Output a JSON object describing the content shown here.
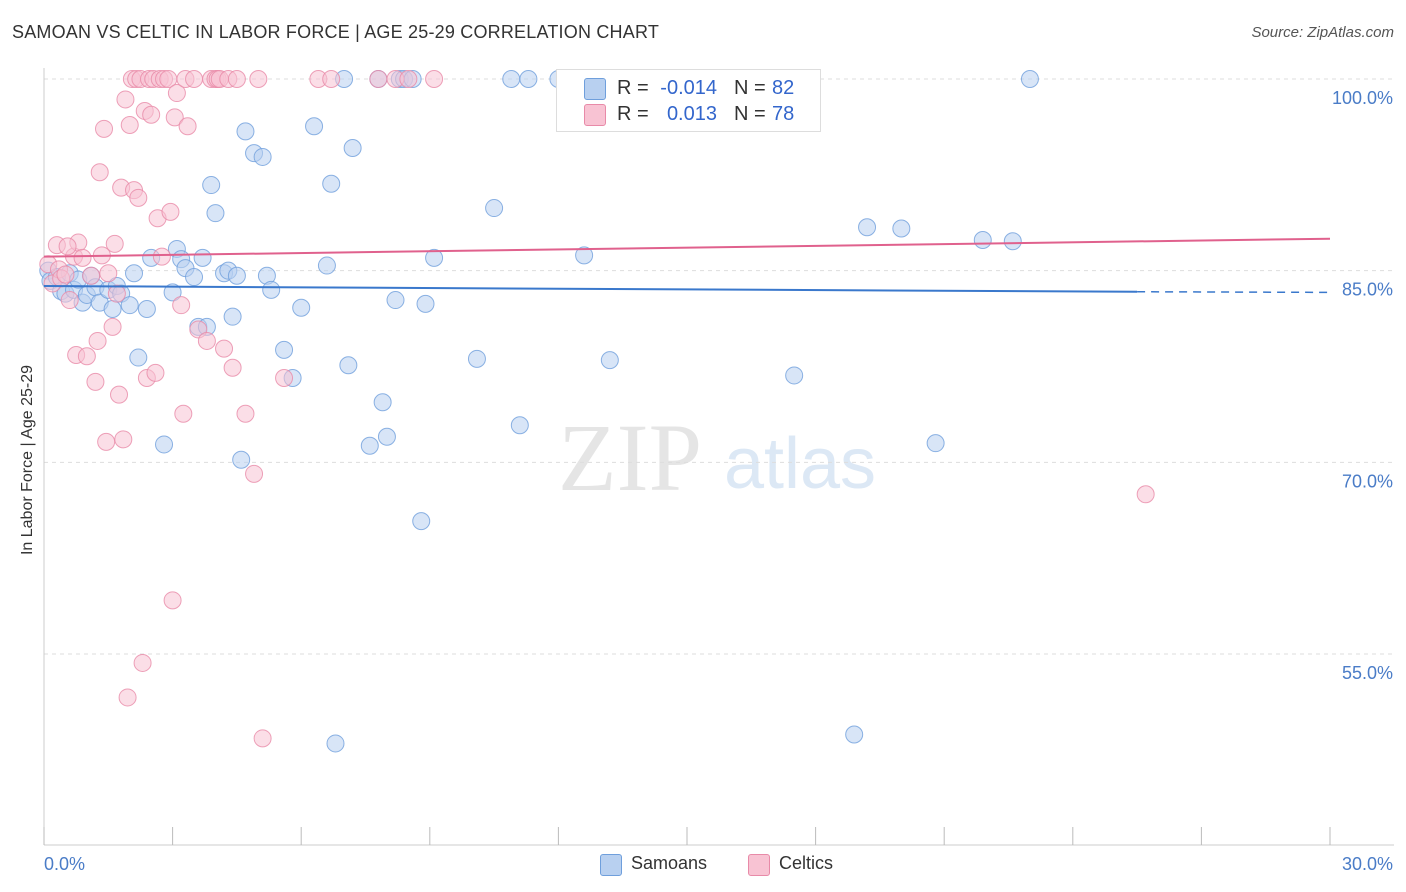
{
  "title": "SAMOAN VS CELTIC IN LABOR FORCE | AGE 25-29 CORRELATION CHART",
  "source": "Source: ZipAtlas.com",
  "watermark": {
    "zip": "ZIP",
    "atlas": "atlas"
  },
  "colors": {
    "samoans_fill": "#b8d0f0",
    "samoans_stroke": "#6f9fdc",
    "samoans_line": "#3a78cc",
    "celtics_fill": "#f8c3d3",
    "celtics_stroke": "#e88aa8",
    "celtics_line": "#e0618d",
    "tick_label": "#4a7cc7",
    "grid": "#dddddd"
  },
  "legend": {
    "rows": [
      {
        "r_label": "R =",
        "r_value": "-0.014",
        "n_label": "N =",
        "n_value": "82"
      },
      {
        "r_label": "R =",
        "r_value": "0.013",
        "n_label": "N =",
        "n_value": "78"
      }
    ]
  },
  "chart_data": {
    "type": "scatter",
    "title": "SAMOAN VS CELTIC IN LABOR FORCE | AGE 25-29 CORRELATION CHART",
    "xlabel": "",
    "ylabel": "In Labor Force | Age 25-29",
    "xlim": [
      0,
      30
    ],
    "ylim": [
      40,
      101.5
    ],
    "x_tick_labels": [
      "0.0%",
      "30.0%"
    ],
    "y_ticks": [
      100,
      85,
      70,
      55
    ],
    "y_tick_labels": [
      "100.0%",
      "85.0%",
      "70.0%",
      "55.0%"
    ],
    "legend_position": "top-center",
    "series": [
      {
        "name": "Samoans",
        "R": -0.014,
        "N": 82,
        "trend": {
          "x0": 0,
          "y0": 83.8,
          "x1": 25.5,
          "y1": 83.35,
          "dashed_to": 30,
          "dashed_y": 83.3
        },
        "points": [
          [
            0.1,
            85
          ],
          [
            0.15,
            84.2
          ],
          [
            0.3,
            84.5
          ],
          [
            0.4,
            83.4
          ],
          [
            0.5,
            83.2
          ],
          [
            0.6,
            84.8
          ],
          [
            0.7,
            83.5
          ],
          [
            0.8,
            84.3
          ],
          [
            0.9,
            82.5
          ],
          [
            1.0,
            83.1
          ],
          [
            1.1,
            84.6
          ],
          [
            1.2,
            83.7
          ],
          [
            1.3,
            82.5
          ],
          [
            1.5,
            83.5
          ],
          [
            1.6,
            82.0
          ],
          [
            1.7,
            83.8
          ],
          [
            1.8,
            83.2
          ],
          [
            2.0,
            82.3
          ],
          [
            2.1,
            84.8
          ],
          [
            2.2,
            78.2
          ],
          [
            2.4,
            82.0
          ],
          [
            2.5,
            86.0
          ],
          [
            2.8,
            71.4
          ],
          [
            3.0,
            83.3
          ],
          [
            3.1,
            86.7
          ],
          [
            3.2,
            85.9
          ],
          [
            3.3,
            85.2
          ],
          [
            3.5,
            84.5
          ],
          [
            3.6,
            80.6
          ],
          [
            3.7,
            86.0
          ],
          [
            3.8,
            80.6
          ],
          [
            3.9,
            91.7
          ],
          [
            4.0,
            89.5
          ],
          [
            4.2,
            84.8
          ],
          [
            4.3,
            85.0
          ],
          [
            4.4,
            81.4
          ],
          [
            4.5,
            84.6
          ],
          [
            4.6,
            70.2
          ],
          [
            4.7,
            95.9
          ],
          [
            4.9,
            94.2
          ],
          [
            5.1,
            93.9
          ],
          [
            5.2,
            84.6
          ],
          [
            5.3,
            83.5
          ],
          [
            5.6,
            78.8
          ],
          [
            5.8,
            76.6
          ],
          [
            6.0,
            82.1
          ],
          [
            6.3,
            96.3
          ],
          [
            6.6,
            85.4
          ],
          [
            6.7,
            91.8
          ],
          [
            6.8,
            48.0
          ],
          [
            7.0,
            100
          ],
          [
            7.1,
            77.6
          ],
          [
            7.2,
            94.6
          ],
          [
            7.6,
            71.3
          ],
          [
            7.8,
            100
          ],
          [
            7.9,
            74.7
          ],
          [
            8.0,
            72.0
          ],
          [
            8.2,
            82.7
          ],
          [
            8.3,
            100
          ],
          [
            8.4,
            100
          ],
          [
            8.6,
            100
          ],
          [
            8.8,
            65.4
          ],
          [
            8.9,
            82.4
          ],
          [
            9.1,
            86.0
          ],
          [
            10.1,
            78.1
          ],
          [
            10.5,
            89.9
          ],
          [
            10.9,
            100
          ],
          [
            11.1,
            72.9
          ],
          [
            11.3,
            100
          ],
          [
            12.6,
            86.2
          ],
          [
            13.2,
            78.0
          ],
          [
            14.4,
            100
          ],
          [
            15.3,
            100
          ],
          [
            17.5,
            76.8
          ],
          [
            18.9,
            48.7
          ],
          [
            19.2,
            88.4
          ],
          [
            20.0,
            88.3
          ],
          [
            20.8,
            71.5
          ],
          [
            21.9,
            87.4
          ],
          [
            22.6,
            87.3
          ],
          [
            23.0,
            100
          ],
          [
            12.0,
            100
          ]
        ]
      },
      {
        "name": "Celtics",
        "R": 0.013,
        "N": 78,
        "trend": {
          "x0": 0,
          "y0": 86.1,
          "x1": 30,
          "y1": 87.5
        },
        "points": [
          [
            0.1,
            85.5
          ],
          [
            0.2,
            84.0
          ],
          [
            0.3,
            87.0
          ],
          [
            0.35,
            85.1
          ],
          [
            0.4,
            84.4
          ],
          [
            0.5,
            84.7
          ],
          [
            0.6,
            82.7
          ],
          [
            0.7,
            86.1
          ],
          [
            0.75,
            78.4
          ],
          [
            0.8,
            87.2
          ],
          [
            0.9,
            86.0
          ],
          [
            1.0,
            78.3
          ],
          [
            1.1,
            84.6
          ],
          [
            1.2,
            76.3
          ],
          [
            1.25,
            79.5
          ],
          [
            1.3,
            92.7
          ],
          [
            1.35,
            86.2
          ],
          [
            1.4,
            96.1
          ],
          [
            1.45,
            71.6
          ],
          [
            1.5,
            84.8
          ],
          [
            1.6,
            80.6
          ],
          [
            1.65,
            87.1
          ],
          [
            1.7,
            83.2
          ],
          [
            1.75,
            75.3
          ],
          [
            1.8,
            91.5
          ],
          [
            1.85,
            71.8
          ],
          [
            1.9,
            98.4
          ],
          [
            2.0,
            96.4
          ],
          [
            2.05,
            100
          ],
          [
            2.1,
            91.3
          ],
          [
            2.15,
            100
          ],
          [
            2.2,
            90.7
          ],
          [
            2.25,
            100
          ],
          [
            2.3,
            54.3
          ],
          [
            2.35,
            97.5
          ],
          [
            2.4,
            76.6
          ],
          [
            2.45,
            100
          ],
          [
            2.5,
            97.2
          ],
          [
            2.55,
            100
          ],
          [
            2.6,
            77.0
          ],
          [
            2.65,
            89.1
          ],
          [
            2.7,
            100
          ],
          [
            2.75,
            86.1
          ],
          [
            2.8,
            100
          ],
          [
            2.9,
            100
          ],
          [
            2.95,
            89.6
          ],
          [
            3.0,
            59.2
          ],
          [
            3.05,
            97.0
          ],
          [
            3.1,
            98.9
          ],
          [
            3.2,
            82.3
          ],
          [
            3.25,
            73.8
          ],
          [
            3.3,
            100
          ],
          [
            3.35,
            96.3
          ],
          [
            3.5,
            100
          ],
          [
            3.6,
            80.4
          ],
          [
            3.8,
            79.5
          ],
          [
            3.9,
            100
          ],
          [
            4.0,
            100
          ],
          [
            4.05,
            100
          ],
          [
            4.1,
            100
          ],
          [
            4.2,
            78.9
          ],
          [
            4.3,
            100
          ],
          [
            4.4,
            77.4
          ],
          [
            4.5,
            100
          ],
          [
            4.7,
            73.8
          ],
          [
            4.9,
            69.1
          ],
          [
            5.0,
            100
          ],
          [
            5.1,
            48.4
          ],
          [
            5.6,
            76.6
          ],
          [
            6.4,
            100
          ],
          [
            6.7,
            100
          ],
          [
            7.8,
            100
          ],
          [
            8.2,
            100
          ],
          [
            8.5,
            100
          ],
          [
            9.1,
            100
          ],
          [
            25.7,
            67.5
          ],
          [
            1.95,
            51.6
          ],
          [
            0.55,
            86.9
          ]
        ]
      }
    ]
  },
  "bottom_legend": {
    "samoans": "Samoans",
    "celtics": "Celtics"
  }
}
